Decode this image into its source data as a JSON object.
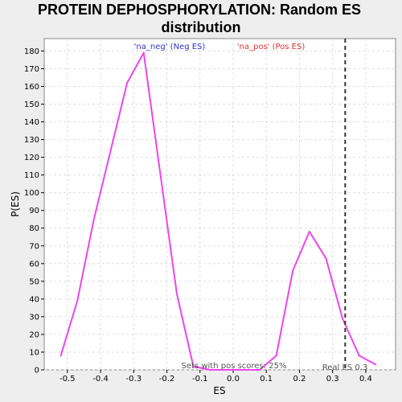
{
  "chart_data": {
    "type": "line",
    "title_line1": "PROTEIN DEPHOSPHORYLATION: Random ES",
    "title_line2": "distribution",
    "xlabel": "ES",
    "ylabel": "P(ES)",
    "xlim": [
      -0.57,
      0.49
    ],
    "ylim": [
      0,
      187
    ],
    "xticks": [
      -0.5,
      -0.4,
      -0.3,
      -0.2,
      -0.1,
      0.0,
      0.1,
      0.2,
      0.3,
      0.4
    ],
    "xtick_labels": [
      "-0.5",
      "-0.4",
      "-0.3",
      "-0.2",
      "-0.1",
      "0.0",
      "0.1",
      "0.2",
      "0.3",
      "0.4"
    ],
    "yticks": [
      0,
      10,
      20,
      30,
      40,
      50,
      60,
      70,
      80,
      90,
      100,
      110,
      120,
      130,
      140,
      150,
      160,
      170,
      180
    ],
    "grid": true,
    "series": [
      {
        "color": "#ee44ee",
        "x": [
          -0.52,
          -0.47,
          -0.42,
          -0.32,
          -0.27,
          -0.17,
          -0.12,
          -0.07,
          -0.02,
          0.03,
          0.08,
          0.13,
          0.18,
          0.23,
          0.28,
          0.33,
          0.38,
          0.43
        ],
        "y": [
          8,
          39,
          85,
          162,
          179,
          43,
          2,
          0,
          0,
          0,
          0,
          8,
          56,
          78,
          63,
          29,
          8,
          3
        ]
      }
    ],
    "real_es": 0.338,
    "annotations": {
      "neg_legend": "'na_neg' (Neg ES)",
      "pos_legend": "'na_pos' (Pos ES)",
      "pos_scores": "Sets with pos scores: 25%",
      "real_es_label": "Real ES 0.3"
    },
    "colors": {
      "neg_legend": "#3333cc",
      "pos_legend": "#dd3333",
      "real_es_line": "#333333"
    }
  }
}
